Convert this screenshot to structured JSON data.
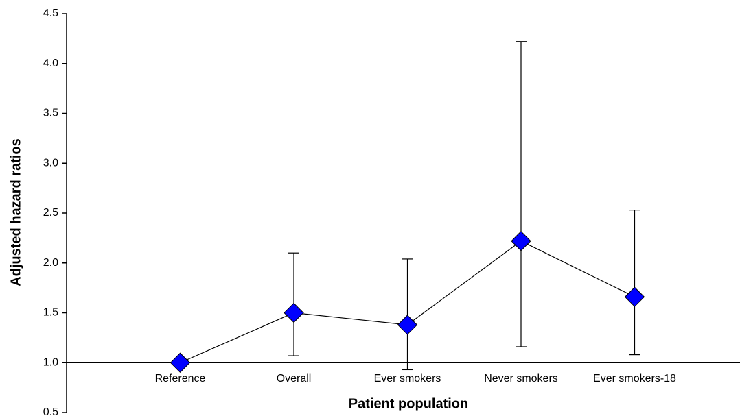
{
  "chart_data": {
    "type": "line",
    "x_label": "Patient population",
    "y_label": "Adjusted hazard ratios",
    "categories": [
      "Reference",
      "Overall",
      "Ever smokers",
      "Never smokers",
      "Ever smokers-18"
    ],
    "series": [
      {
        "color": "#0000ff",
        "values": [
          1.0,
          1.5,
          1.38,
          2.22,
          1.66
        ],
        "lower": [
          null,
          1.07,
          0.93,
          1.16,
          1.08
        ],
        "upper": [
          null,
          2.1,
          2.04,
          4.22,
          2.53
        ]
      }
    ],
    "ylim": [
      0.5,
      4.5
    ],
    "yticks": [
      0.5,
      {
        "value": 1,
        "label": "1.0"
      },
      1.5,
      {
        "value": 2,
        "label": "2.0"
      },
      2.5,
      {
        "value": 3,
        "label": "3.0"
      },
      3.5,
      {
        "value": 4,
        "label": "4.0"
      },
      4.5
    ],
    "baseline": 1,
    "grid": false
  }
}
